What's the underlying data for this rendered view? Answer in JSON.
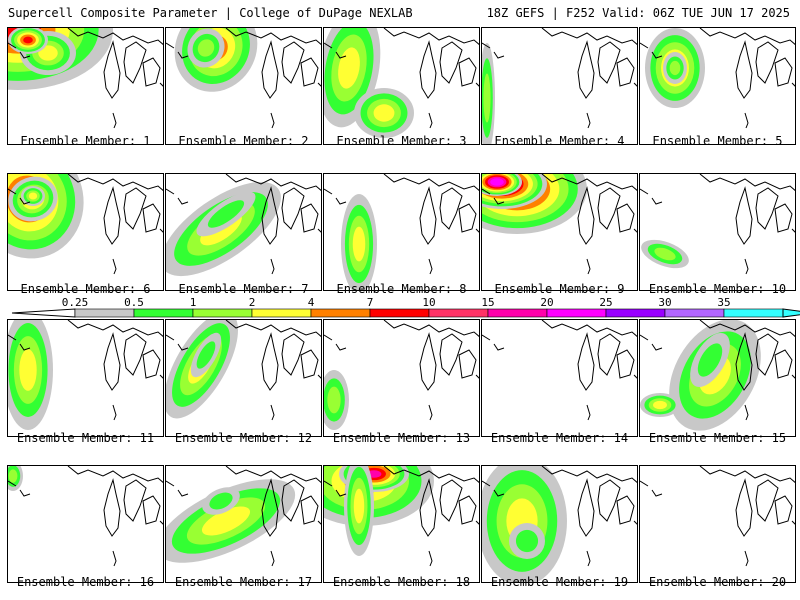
{
  "header": {
    "left": "Supercell Composite Parameter | College of DuPage NEXLAB",
    "right": "18Z GEFS | F252 Valid: 06Z TUE JUN 17 2025"
  },
  "legend": {
    "ticks": [
      "0.25",
      "0.5",
      "1",
      "2",
      "4",
      "7",
      "10",
      "15",
      "20",
      "25",
      "30",
      "35"
    ],
    "colors": [
      "#c8c8c8",
      "#33ff33",
      "#99ff33",
      "#ffff33",
      "#ff8000",
      "#ff0000",
      "#ff3366",
      "#ff00aa",
      "#ff00ff",
      "#9900ff",
      "#b266ff",
      "#33ffff"
    ]
  },
  "members": [
    {
      "label": "Ensemble Member: 1"
    },
    {
      "label": "Ensemble Member: 2"
    },
    {
      "label": "Ensemble Member: 3"
    },
    {
      "label": "Ensemble Member: 4"
    },
    {
      "label": "Ensemble Member: 5"
    },
    {
      "label": "Ensemble Member: 6"
    },
    {
      "label": "Ensemble Member: 7"
    },
    {
      "label": "Ensemble Member: 8"
    },
    {
      "label": "Ensemble Member: 9"
    },
    {
      "label": "Ensemble Member: 10"
    },
    {
      "label": "Ensemble Member: 11"
    },
    {
      "label": "Ensemble Member: 12"
    },
    {
      "label": "Ensemble Member: 13"
    },
    {
      "label": "Ensemble Member: 14"
    },
    {
      "label": "Ensemble Member: 15"
    },
    {
      "label": "Ensemble Member: 16"
    },
    {
      "label": "Ensemble Member: 17"
    },
    {
      "label": "Ensemble Member: 18"
    },
    {
      "label": "Ensemble Member: 19"
    },
    {
      "label": "Ensemble Member: 20"
    }
  ]
}
